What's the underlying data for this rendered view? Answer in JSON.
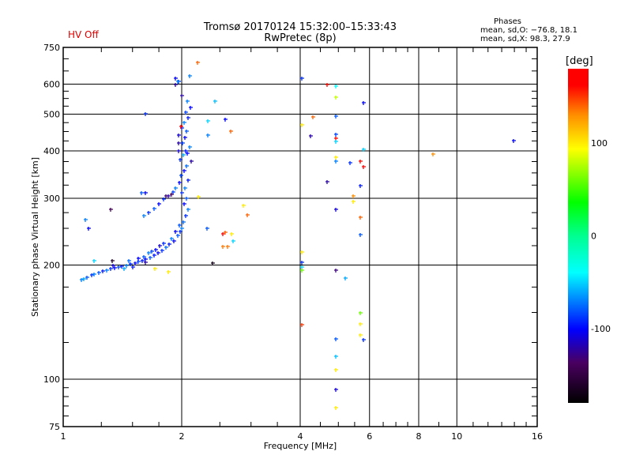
{
  "header": {
    "title_line1": "Tromsø 20170124 15:32:00–15:33:43",
    "title_line2": "RwPretec (8p)",
    "status": "HV Off",
    "phases_title": "Phases",
    "phases_o": "mean, sd,O: −76.8, 18.1",
    "phases_x": "mean, sd,X:  98.3, 27.9"
  },
  "colors": {
    "status": "#e00000",
    "grid": "#000000"
  },
  "chart_data": {
    "type": "scatter",
    "xlabel": "Frequency [MHz]",
    "ylabel": "Stationary phase Virtual Height [km]",
    "xscale": "log",
    "yscale": "log",
    "xlim": [
      1,
      16
    ],
    "ylim": [
      75,
      750
    ],
    "xticks": [
      1,
      2,
      4,
      6,
      8,
      10,
      16
    ],
    "yticks": [
      75,
      100,
      200,
      300,
      400,
      500,
      600,
      750
    ],
    "xgrid": [
      2,
      4,
      6,
      8,
      10
    ],
    "ygrid": [
      100,
      200,
      300,
      400,
      500,
      600
    ],
    "grid": true,
    "colorbar": {
      "label": "[deg]",
      "range": [
        -180,
        180
      ],
      "ticks": [
        100,
        0,
        -100
      ]
    },
    "points_fields": [
      "freq_MHz",
      "height_km",
      "phase_deg"
    ],
    "points": [
      [
        1.11,
        183,
        -70
      ],
      [
        1.13,
        184,
        -60
      ],
      [
        1.15,
        186,
        -80
      ],
      [
        1.18,
        188,
        -90
      ],
      [
        1.2,
        189,
        -70
      ],
      [
        1.23,
        191,
        -80
      ],
      [
        1.26,
        193,
        -95
      ],
      [
        1.29,
        194,
        -70
      ],
      [
        1.32,
        196,
        -90
      ],
      [
        1.35,
        197,
        -100
      ],
      [
        1.38,
        198,
        -85
      ],
      [
        1.41,
        199,
        -95
      ],
      [
        1.45,
        200,
        -70
      ],
      [
        1.48,
        201,
        -90
      ],
      [
        1.52,
        202,
        -100
      ],
      [
        1.55,
        204,
        -85
      ],
      [
        1.59,
        205,
        -95
      ],
      [
        1.62,
        207,
        -100
      ],
      [
        1.66,
        209,
        -80
      ],
      [
        1.7,
        212,
        -95
      ],
      [
        1.74,
        215,
        -100
      ],
      [
        1.78,
        219,
        -90
      ],
      [
        1.82,
        223,
        -75
      ],
      [
        1.86,
        227,
        -95
      ],
      [
        1.91,
        232,
        -100
      ],
      [
        1.95,
        239,
        -80
      ],
      [
        1.98,
        245,
        -90
      ],
      [
        2.0,
        250,
        -70
      ],
      [
        1.34,
        200,
        -110
      ],
      [
        1.5,
        198,
        -95
      ],
      [
        1.6,
        210,
        -80
      ],
      [
        1.65,
        215,
        -70
      ],
      [
        1.72,
        220,
        -100
      ],
      [
        1.8,
        228,
        -90
      ],
      [
        1.88,
        235,
        -70
      ],
      [
        1.93,
        245,
        -100
      ],
      [
        1.97,
        255,
        -80
      ],
      [
        1.47,
        205,
        -75
      ],
      [
        1.55,
        208,
        -100
      ],
      [
        1.68,
        218,
        -85
      ],
      [
        1.76,
        225,
        -110
      ],
      [
        1.43,
        196,
        -60
      ],
      [
        1.62,
        203,
        -120
      ],
      [
        2.02,
        260,
        -75
      ],
      [
        2.05,
        270,
        -90
      ],
      [
        2.08,
        280,
        -70
      ],
      [
        2.03,
        290,
        -100
      ],
      [
        2.06,
        300,
        -80
      ],
      [
        2.0,
        310,
        -90
      ],
      [
        2.04,
        320,
        -70
      ],
      [
        2.08,
        335,
        -95
      ],
      [
        1.99,
        345,
        -85
      ],
      [
        2.03,
        355,
        -100
      ],
      [
        2.06,
        365,
        -75
      ],
      [
        1.98,
        380,
        -90
      ],
      [
        2.02,
        390,
        -60
      ],
      [
        2.05,
        400,
        -95
      ],
      [
        2.09,
        410,
        -70
      ],
      [
        2.01,
        420,
        -85
      ],
      [
        2.04,
        435,
        -100
      ],
      [
        1.96,
        440,
        -110
      ],
      [
        2.06,
        450,
        -80
      ],
      [
        2.0,
        460,
        -90
      ],
      [
        2.03,
        475,
        -70
      ],
      [
        1.99,
        465,
        175
      ],
      [
        2.08,
        490,
        -95
      ],
      [
        2.05,
        505,
        -85
      ],
      [
        2.1,
        520,
        -100
      ],
      [
        2.07,
        540,
        -70
      ],
      [
        1.96,
        420,
        -120
      ],
      [
        1.96,
        400,
        -110
      ],
      [
        1.96,
        610,
        -90
      ],
      [
        1.93,
        600,
        -120
      ],
      [
        2.11,
        375,
        -120
      ],
      [
        2.07,
        395,
        -100
      ],
      [
        2.0,
        560,
        -120
      ],
      [
        1.6,
        270,
        -70
      ],
      [
        1.65,
        275,
        -90
      ],
      [
        1.7,
        282,
        -80
      ],
      [
        1.75,
        290,
        -100
      ],
      [
        1.8,
        298,
        -90
      ],
      [
        1.85,
        305,
        -120
      ],
      [
        1.9,
        312,
        -85
      ],
      [
        1.93,
        320,
        -70
      ],
      [
        1.97,
        330,
        -100
      ],
      [
        1.62,
        310,
        -100
      ],
      [
        1.58,
        310,
        -80
      ],
      [
        1.88,
        308,
        -140
      ],
      [
        1.82,
        305,
        -130
      ],
      [
        1.14,
        264,
        -70
      ],
      [
        1.32,
        280,
        -140
      ],
      [
        1.16,
        250,
        -100
      ],
      [
        1.2,
        205,
        -50
      ],
      [
        1.62,
        502,
        -90
      ],
      [
        1.93,
        622,
        -100
      ],
      [
        1.95,
        610,
        -70
      ],
      [
        2.09,
        630,
        -70
      ],
      [
        1.71,
        196,
        100
      ],
      [
        1.85,
        192,
        100
      ],
      [
        1.33,
        205,
        -160
      ],
      [
        2.43,
        542,
        -55
      ],
      [
        2.33,
        481,
        -50
      ],
      [
        2.58,
        484,
        -100
      ],
      [
        2.66,
        450,
        140
      ],
      [
        2.33,
        440,
        -70
      ],
      [
        2.54,
        242,
        165
      ],
      [
        2.58,
        244,
        140
      ],
      [
        2.54,
        224,
        135
      ],
      [
        2.62,
        224,
        135
      ],
      [
        2.68,
        242,
        100
      ],
      [
        2.7,
        232,
        -50
      ],
      [
        2.4,
        202,
        -170
      ],
      [
        2.87,
        287,
        100
      ],
      [
        2.94,
        271,
        140
      ],
      [
        2.19,
        685,
        140
      ],
      [
        2.32,
        250,
        -80
      ],
      [
        2.2,
        303,
        100
      ],
      [
        4.04,
        622,
        -90
      ],
      [
        4.68,
        599,
        160
      ],
      [
        4.92,
        593,
        -40
      ],
      [
        4.92,
        554,
        80
      ],
      [
        5.79,
        536,
        -100
      ],
      [
        4.31,
        492,
        140
      ],
      [
        4.92,
        495,
        -80
      ],
      [
        4.04,
        469,
        100
      ],
      [
        4.25,
        438,
        -120
      ],
      [
        4.92,
        442,
        -85
      ],
      [
        4.92,
        433,
        160
      ],
      [
        4.92,
        423,
        -50
      ],
      [
        5.79,
        403,
        -50
      ],
      [
        4.92,
        385,
        100
      ],
      [
        4.92,
        376,
        -70
      ],
      [
        5.35,
        373,
        -90
      ],
      [
        5.68,
        376,
        160
      ],
      [
        5.79,
        363,
        170
      ],
      [
        4.68,
        332,
        -120
      ],
      [
        5.68,
        324,
        -95
      ],
      [
        5.45,
        304,
        130
      ],
      [
        5.45,
        295,
        100
      ],
      [
        4.92,
        280,
        -110
      ],
      [
        5.68,
        267,
        140
      ],
      [
        5.68,
        241,
        -80
      ],
      [
        4.04,
        216,
        100
      ],
      [
        4.04,
        203,
        -90
      ],
      [
        4.04,
        198,
        -50
      ],
      [
        4.04,
        194,
        60
      ],
      [
        4.92,
        194,
        -130
      ],
      [
        5.2,
        185,
        -60
      ],
      [
        5.68,
        150,
        60
      ],
      [
        4.04,
        139,
        150
      ],
      [
        5.68,
        140,
        100
      ],
      [
        5.68,
        131,
        100
      ],
      [
        5.79,
        127,
        -90
      ],
      [
        4.92,
        128,
        -80
      ],
      [
        4.92,
        115,
        -55
      ],
      [
        4.92,
        106,
        100
      ],
      [
        4.92,
        94,
        -110
      ],
      [
        4.92,
        84,
        100
      ],
      [
        8.69,
        392,
        130
      ],
      [
        13.93,
        426,
        -100
      ]
    ]
  }
}
